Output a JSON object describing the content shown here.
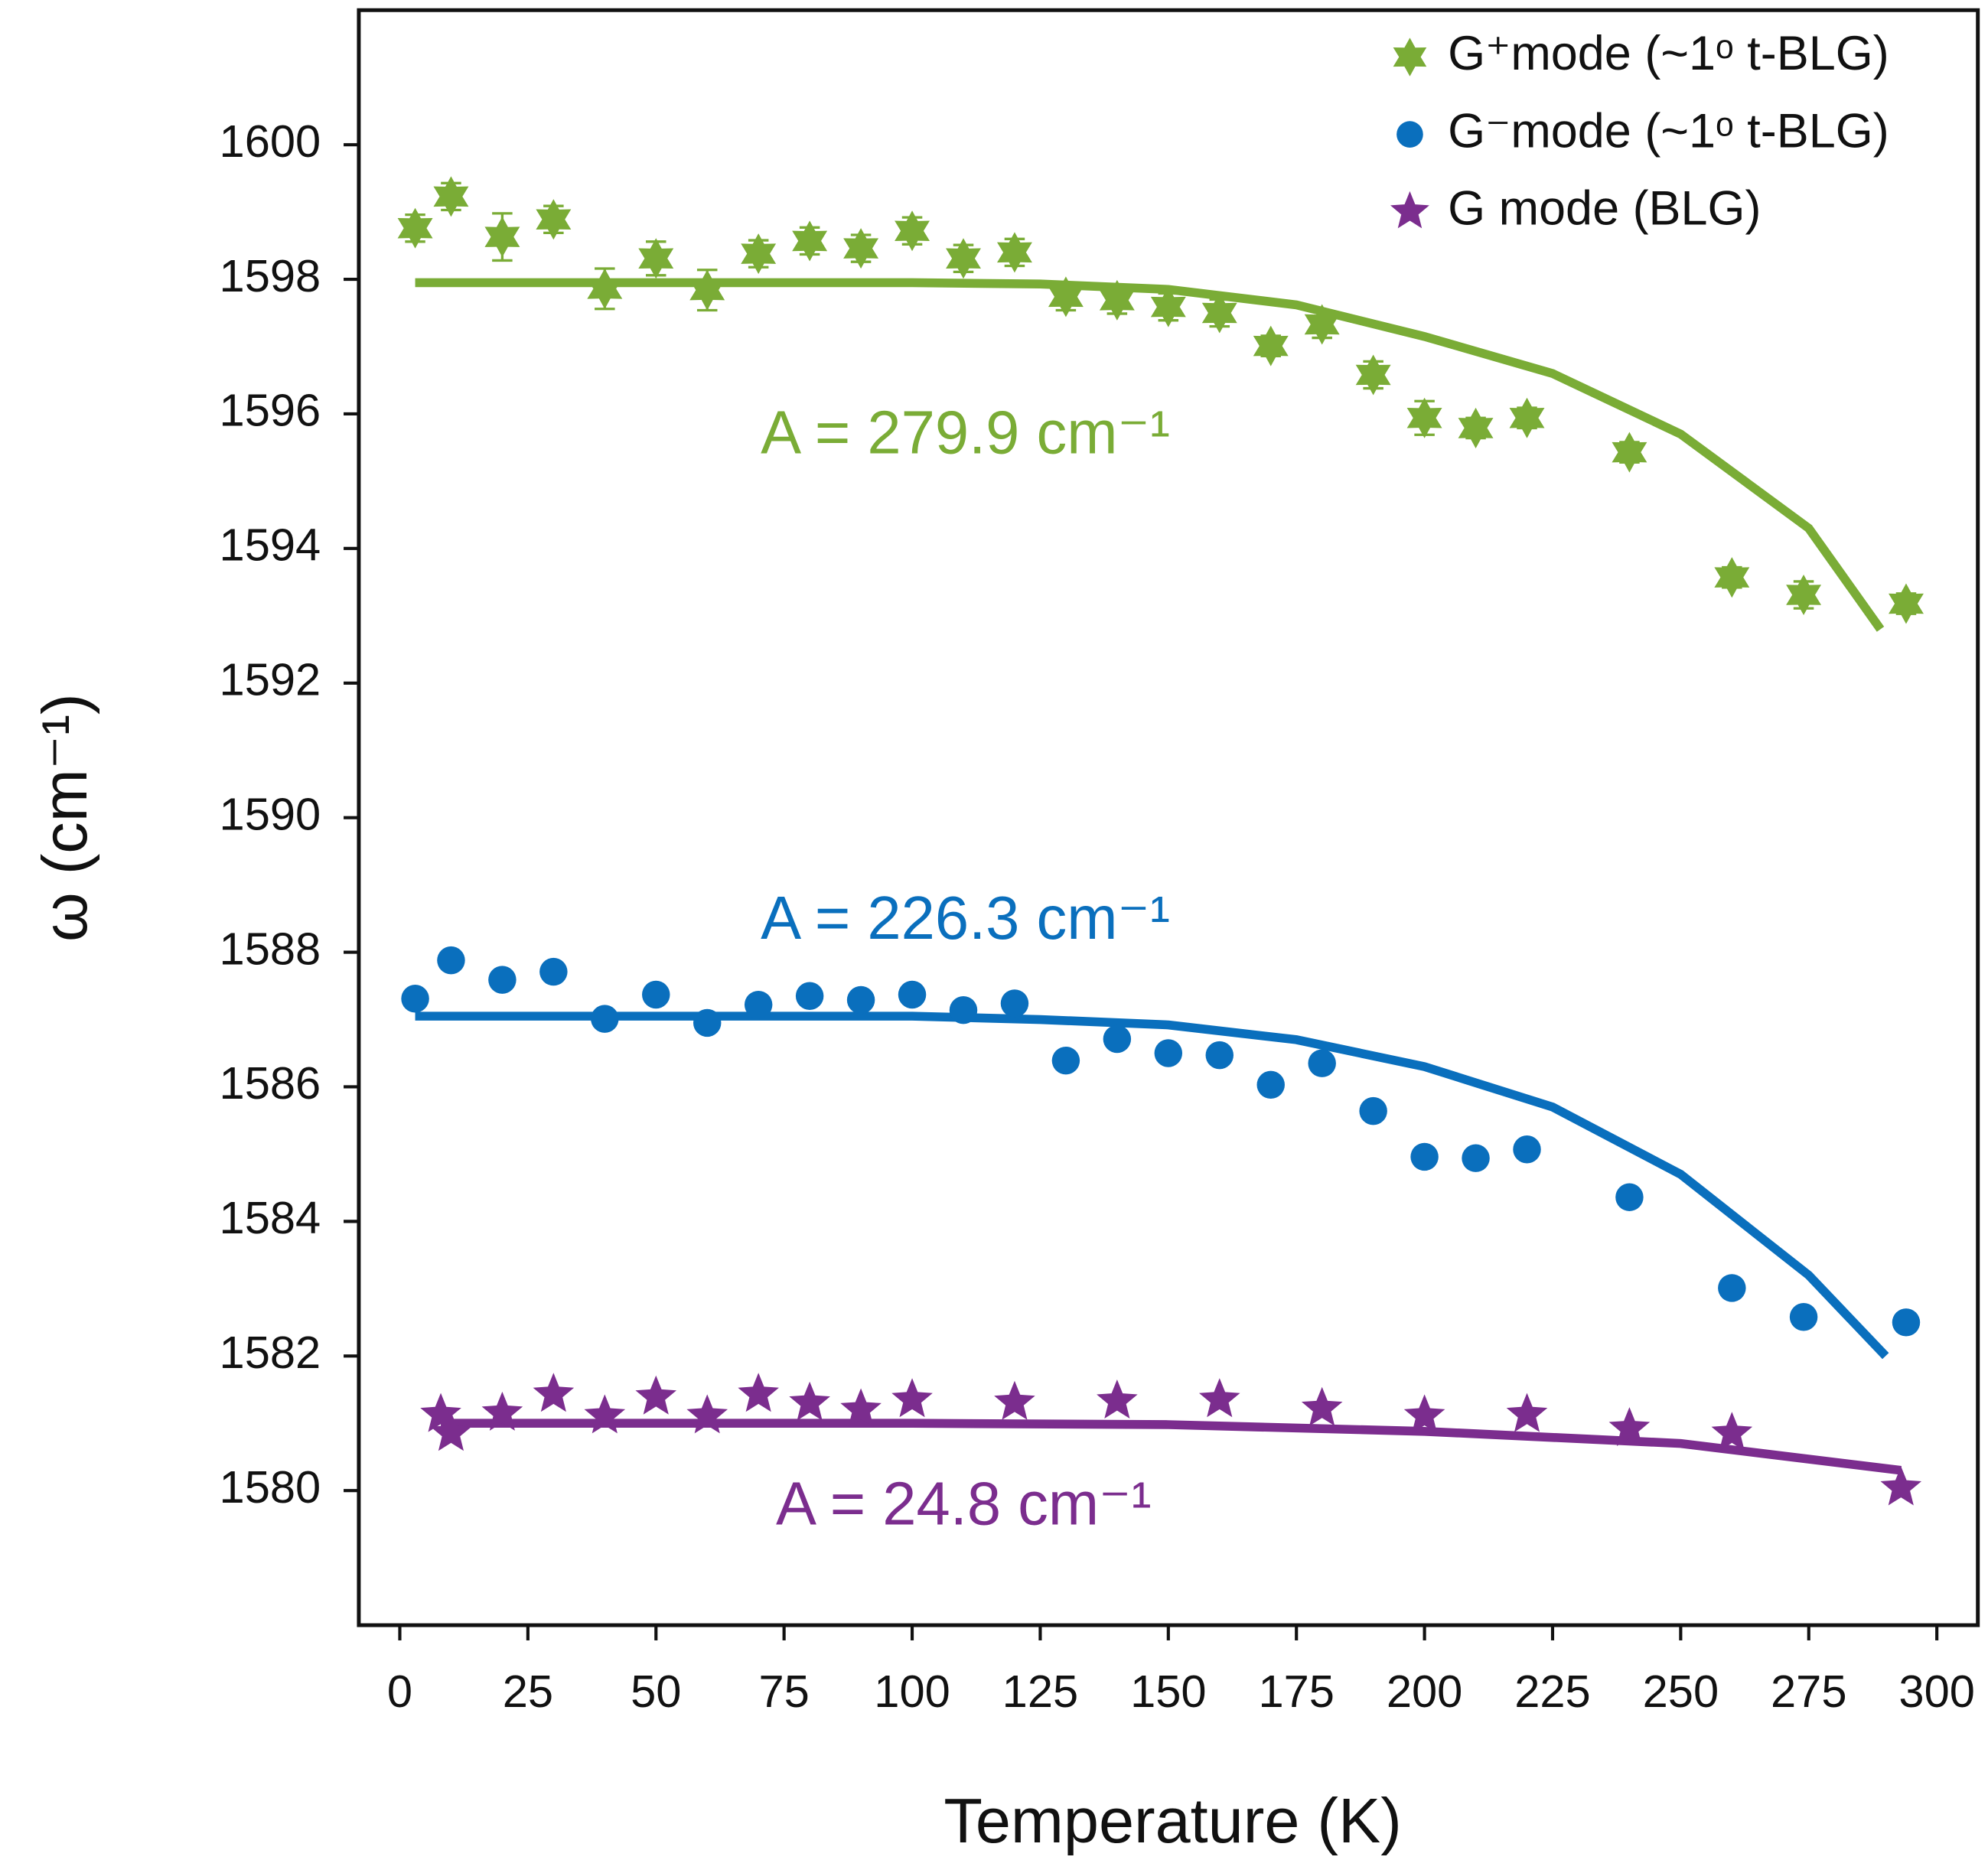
{
  "chart_data": {
    "type": "scatter",
    "xlabel": "Temperature (K)",
    "ylabel": "ω (cm⁻¹)",
    "xlim": [
      -8,
      308
    ],
    "ylim": [
      1578,
      1602
    ],
    "xticks": [
      0,
      25,
      50,
      75,
      100,
      125,
      150,
      175,
      200,
      225,
      250,
      275,
      300
    ],
    "yticks": [
      1580,
      1582,
      1584,
      1586,
      1588,
      1590,
      1592,
      1594,
      1596,
      1598,
      1600
    ],
    "grid": false,
    "legend": "upper right",
    "series": [
      {
        "name": "G⁺mode (~1ᵒ t-BLG)",
        "color": "#7aac36",
        "marker": "hexagram",
        "x": [
          3,
          10,
          20,
          30,
          40,
          50,
          60,
          70,
          80,
          90,
          100,
          110,
          120,
          130,
          140,
          150,
          160,
          170,
          180,
          190,
          200,
          210,
          220,
          240,
          260,
          274,
          294
        ],
        "values": [
          1598.76,
          1599.23,
          1598.63,
          1598.89,
          1597.86,
          1598.31,
          1597.84,
          1598.38,
          1598.57,
          1598.46,
          1598.72,
          1598.31,
          1598.4,
          1597.74,
          1597.69,
          1597.59,
          1597.5,
          1597.01,
          1597.33,
          1596.58,
          1595.94,
          1595.79,
          1595.94,
          1595.43,
          1593.57,
          1593.31,
          1593.18
        ],
        "errors": [
          0.2,
          0.2,
          0.35,
          0.2,
          0.3,
          0.25,
          0.3,
          0.2,
          0.2,
          0.2,
          0.2,
          0.2,
          0.2,
          0.2,
          0.2,
          0.2,
          0.2,
          0.15,
          0.2,
          0.2,
          0.25,
          0.15,
          0.15,
          0.15,
          0.15,
          0.2,
          0.15
        ],
        "fit": {
          "x": [
            3,
            100,
            125,
            150,
            175,
            200,
            225,
            250,
            275,
            289
          ],
          "values": [
            1597.95,
            1597.95,
            1597.93,
            1597.85,
            1597.62,
            1597.15,
            1596.6,
            1595.7,
            1594.3,
            1592.8
          ]
        }
      },
      {
        "name": "G⁻mode (~1ᵒ t-BLG)",
        "color": "#0a6fbd",
        "marker": "circle",
        "x": [
          3,
          10,
          20,
          30,
          40,
          50,
          60,
          70,
          80,
          90,
          100,
          110,
          120,
          130,
          140,
          150,
          160,
          170,
          180,
          190,
          200,
          210,
          220,
          240,
          260,
          274,
          294
        ],
        "values": [
          1587.31,
          1587.88,
          1587.59,
          1587.71,
          1587.01,
          1587.37,
          1586.95,
          1587.22,
          1587.35,
          1587.29,
          1587.37,
          1587.14,
          1587.24,
          1586.39,
          1586.71,
          1586.5,
          1586.47,
          1586.03,
          1586.35,
          1585.64,
          1584.96,
          1584.94,
          1585.07,
          1584.36,
          1583.01,
          1582.58,
          1582.5
        ],
        "fit": {
          "x": [
            3,
            100,
            125,
            150,
            175,
            200,
            225,
            250,
            275,
            290
          ],
          "values": [
            1587.05,
            1587.05,
            1587.0,
            1586.92,
            1586.7,
            1586.3,
            1585.7,
            1584.7,
            1583.2,
            1582.0
          ]
        }
      },
      {
        "name": "G  mode (BLG)",
        "color": "#7b2d8e",
        "marker": "star",
        "x": [
          8,
          10,
          20,
          30,
          40,
          50,
          60,
          70,
          80,
          90,
          100,
          120,
          140,
          160,
          180,
          200,
          220,
          240,
          260,
          293
        ],
        "values": [
          1581.13,
          1580.85,
          1581.15,
          1581.43,
          1581.11,
          1581.39,
          1581.11,
          1581.43,
          1581.3,
          1581.2,
          1581.35,
          1581.31,
          1581.33,
          1581.35,
          1581.22,
          1581.11,
          1581.13,
          1580.92,
          1580.85,
          1580.04
        ],
        "fit": {
          "x": [
            8,
            100,
            150,
            200,
            250,
            293
          ],
          "values": [
            1581.0,
            1581.0,
            1580.98,
            1580.88,
            1580.7,
            1580.3
          ]
        }
      }
    ],
    "annotations": [
      "A  =  279.9 cm⁻¹",
      "A  =  226.3 cm⁻¹",
      "A  =  24.8 cm⁻¹"
    ]
  }
}
